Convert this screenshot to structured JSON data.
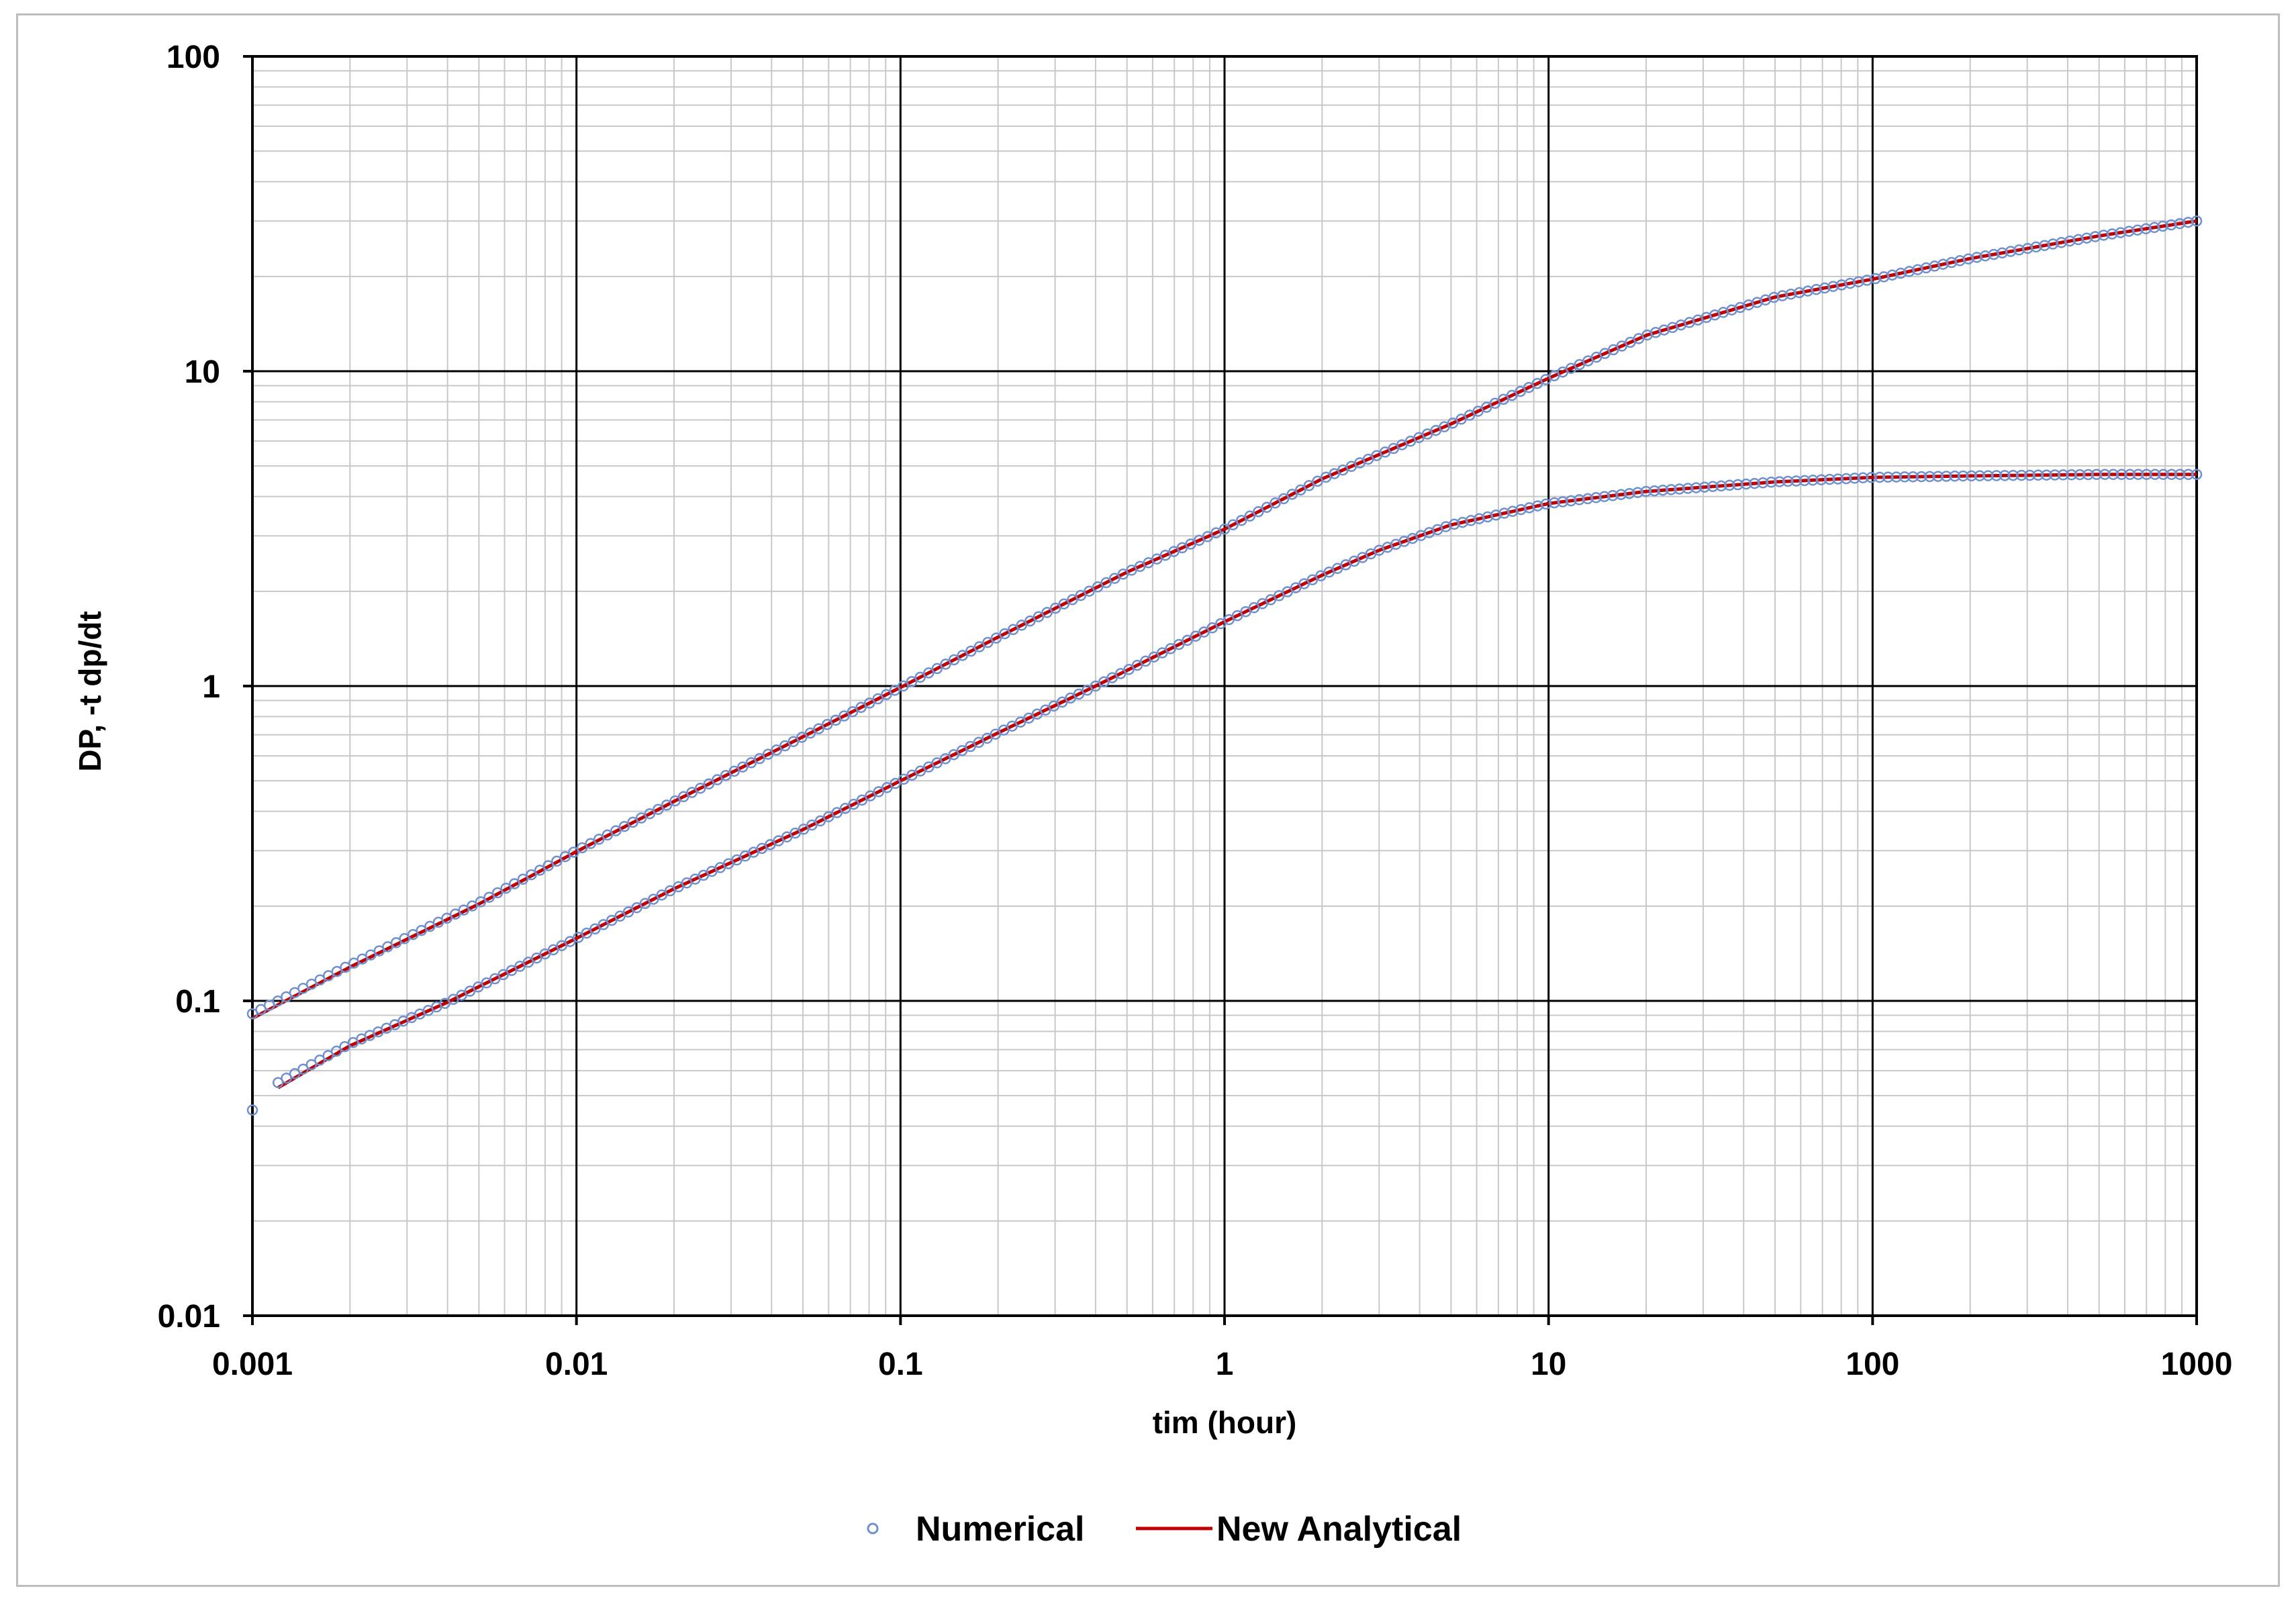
{
  "chart_data": {
    "type": "line",
    "x_scale": "log",
    "y_scale": "log",
    "xlabel": "tim (hour)",
    "ylabel": "DP, -t dp/dt",
    "xlim": [
      0.001,
      1000
    ],
    "ylim": [
      0.01,
      100
    ],
    "x_tick_labels": [
      "0.001",
      "0.01",
      "0.1",
      "1",
      "10",
      "100",
      "1000"
    ],
    "y_tick_labels": [
      "0.01",
      "0.1",
      "1",
      "10",
      "100"
    ],
    "grid": true,
    "legend_position": "bottom",
    "legend": [
      {
        "label": "Numerical",
        "marker": "circle",
        "color": "#6f8fcf"
      },
      {
        "label": "New Analytical",
        "marker": "line",
        "color": "#c00000"
      }
    ],
    "series": [
      {
        "name": "Numerical",
        "curve": "DP",
        "style": "markers",
        "color": "#6f8fcf",
        "x": [
          0.001,
          0.002,
          0.005,
          0.01,
          0.02,
          0.05,
          0.1,
          0.2,
          0.5,
          1,
          2,
          5,
          10,
          20,
          50,
          100,
          200,
          500,
          1000
        ],
        "y": [
          0.091,
          0.13,
          0.205,
          0.3,
          0.43,
          0.69,
          0.99,
          1.43,
          2.3,
          3.15,
          4.55,
          6.8,
          9.5,
          13.0,
          17.2,
          19.6,
          22.8,
          26.9,
          30.0
        ]
      },
      {
        "name": "New Analytical",
        "curve": "DP",
        "style": "line",
        "color": "#c00000",
        "x": [
          0.001,
          0.002,
          0.005,
          0.01,
          0.02,
          0.05,
          0.1,
          0.2,
          0.5,
          1,
          2,
          5,
          10,
          20,
          50,
          100,
          200,
          500,
          1000
        ],
        "y": [
          0.088,
          0.128,
          0.203,
          0.298,
          0.43,
          0.69,
          0.99,
          1.43,
          2.3,
          3.15,
          4.55,
          6.8,
          9.5,
          13.0,
          17.2,
          19.6,
          22.8,
          26.9,
          30.0
        ]
      },
      {
        "name": "Numerical",
        "curve": "-t dp/dt",
        "style": "markers",
        "color": "#6f8fcf",
        "x": [
          0.0012,
          0.002,
          0.004,
          0.01,
          0.02,
          0.05,
          0.1,
          0.2,
          0.4,
          1,
          2,
          3,
          5,
          10,
          20,
          50,
          100,
          200,
          500,
          1000
        ],
        "y": [
          0.055,
          0.073,
          0.099,
          0.158,
          0.227,
          0.35,
          0.5,
          0.71,
          1.0,
          1.6,
          2.25,
          2.7,
          3.25,
          3.8,
          4.15,
          4.45,
          4.6,
          4.65,
          4.7,
          4.7
        ]
      },
      {
        "name": "New Analytical",
        "curve": "-t dp/dt",
        "style": "line",
        "color": "#c00000",
        "x": [
          0.0012,
          0.002,
          0.004,
          0.01,
          0.02,
          0.05,
          0.1,
          0.2,
          0.4,
          1,
          2,
          3,
          5,
          10,
          20,
          50,
          100,
          200,
          500,
          1000
        ],
        "y": [
          0.053,
          0.072,
          0.099,
          0.158,
          0.227,
          0.35,
          0.5,
          0.71,
          1.0,
          1.6,
          2.25,
          2.7,
          3.25,
          3.8,
          4.15,
          4.45,
          4.6,
          4.65,
          4.7,
          4.7
        ]
      }
    ],
    "annotations": [
      {
        "x": 0.001,
        "y": 0.045,
        "marker": "circle",
        "color": "#6f8fcf"
      }
    ]
  }
}
